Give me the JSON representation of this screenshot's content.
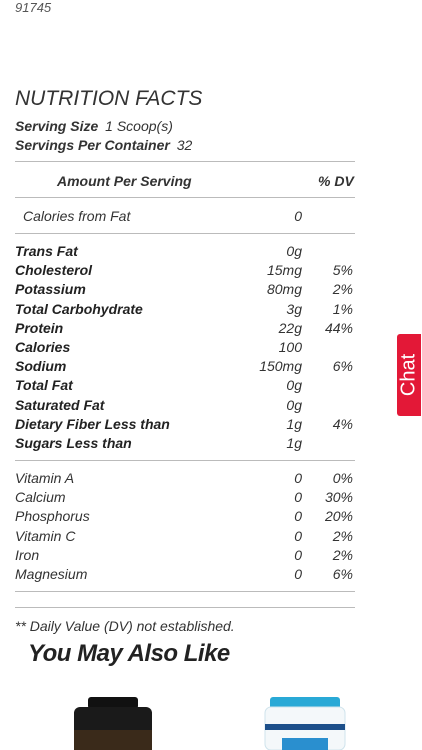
{
  "sku": "91745",
  "title": "NUTRITION FACTS",
  "serving_size": {
    "label": "Serving Size",
    "value": "1 Scoop(s)"
  },
  "servings_per_container": {
    "label": "Servings Per Container",
    "value": "32"
  },
  "table_header": {
    "amount": "Amount Per Serving",
    "dv": "% DV"
  },
  "calories_from_fat": {
    "name": "Calories from Fat",
    "amount": "0"
  },
  "nutrients": [
    [
      "Trans Fat",
      "0g",
      ""
    ],
    [
      "Cholesterol",
      "15mg",
      "5%"
    ],
    [
      "Potassium",
      "80mg",
      "2%"
    ],
    [
      "Total Carbohydrate",
      "3g",
      "1%"
    ],
    [
      "Protein",
      "22g",
      "44%"
    ],
    [
      "Calories",
      "100",
      ""
    ],
    [
      "Sodium",
      "150mg",
      "6%"
    ],
    [
      "Total Fat",
      "0g",
      ""
    ],
    [
      "Saturated Fat",
      "0g",
      ""
    ],
    [
      "Dietary Fiber Less than",
      "1g",
      "4%"
    ],
    [
      "Sugars Less than",
      "1g",
      ""
    ]
  ],
  "vitamins": [
    [
      "Vitamin A",
      "0",
      "0%"
    ],
    [
      "Calcium",
      "0",
      "30%"
    ],
    [
      "Phosphorus",
      "0",
      "20%"
    ],
    [
      "Vitamin C",
      "0",
      "2%"
    ],
    [
      "Iron",
      "0",
      "2%"
    ],
    [
      "Magnesium",
      "0",
      "6%"
    ]
  ],
  "footnote": "** Daily Value (DV) not established.",
  "recommendations_title": "You May Also Like",
  "chat_button": "Chat"
}
